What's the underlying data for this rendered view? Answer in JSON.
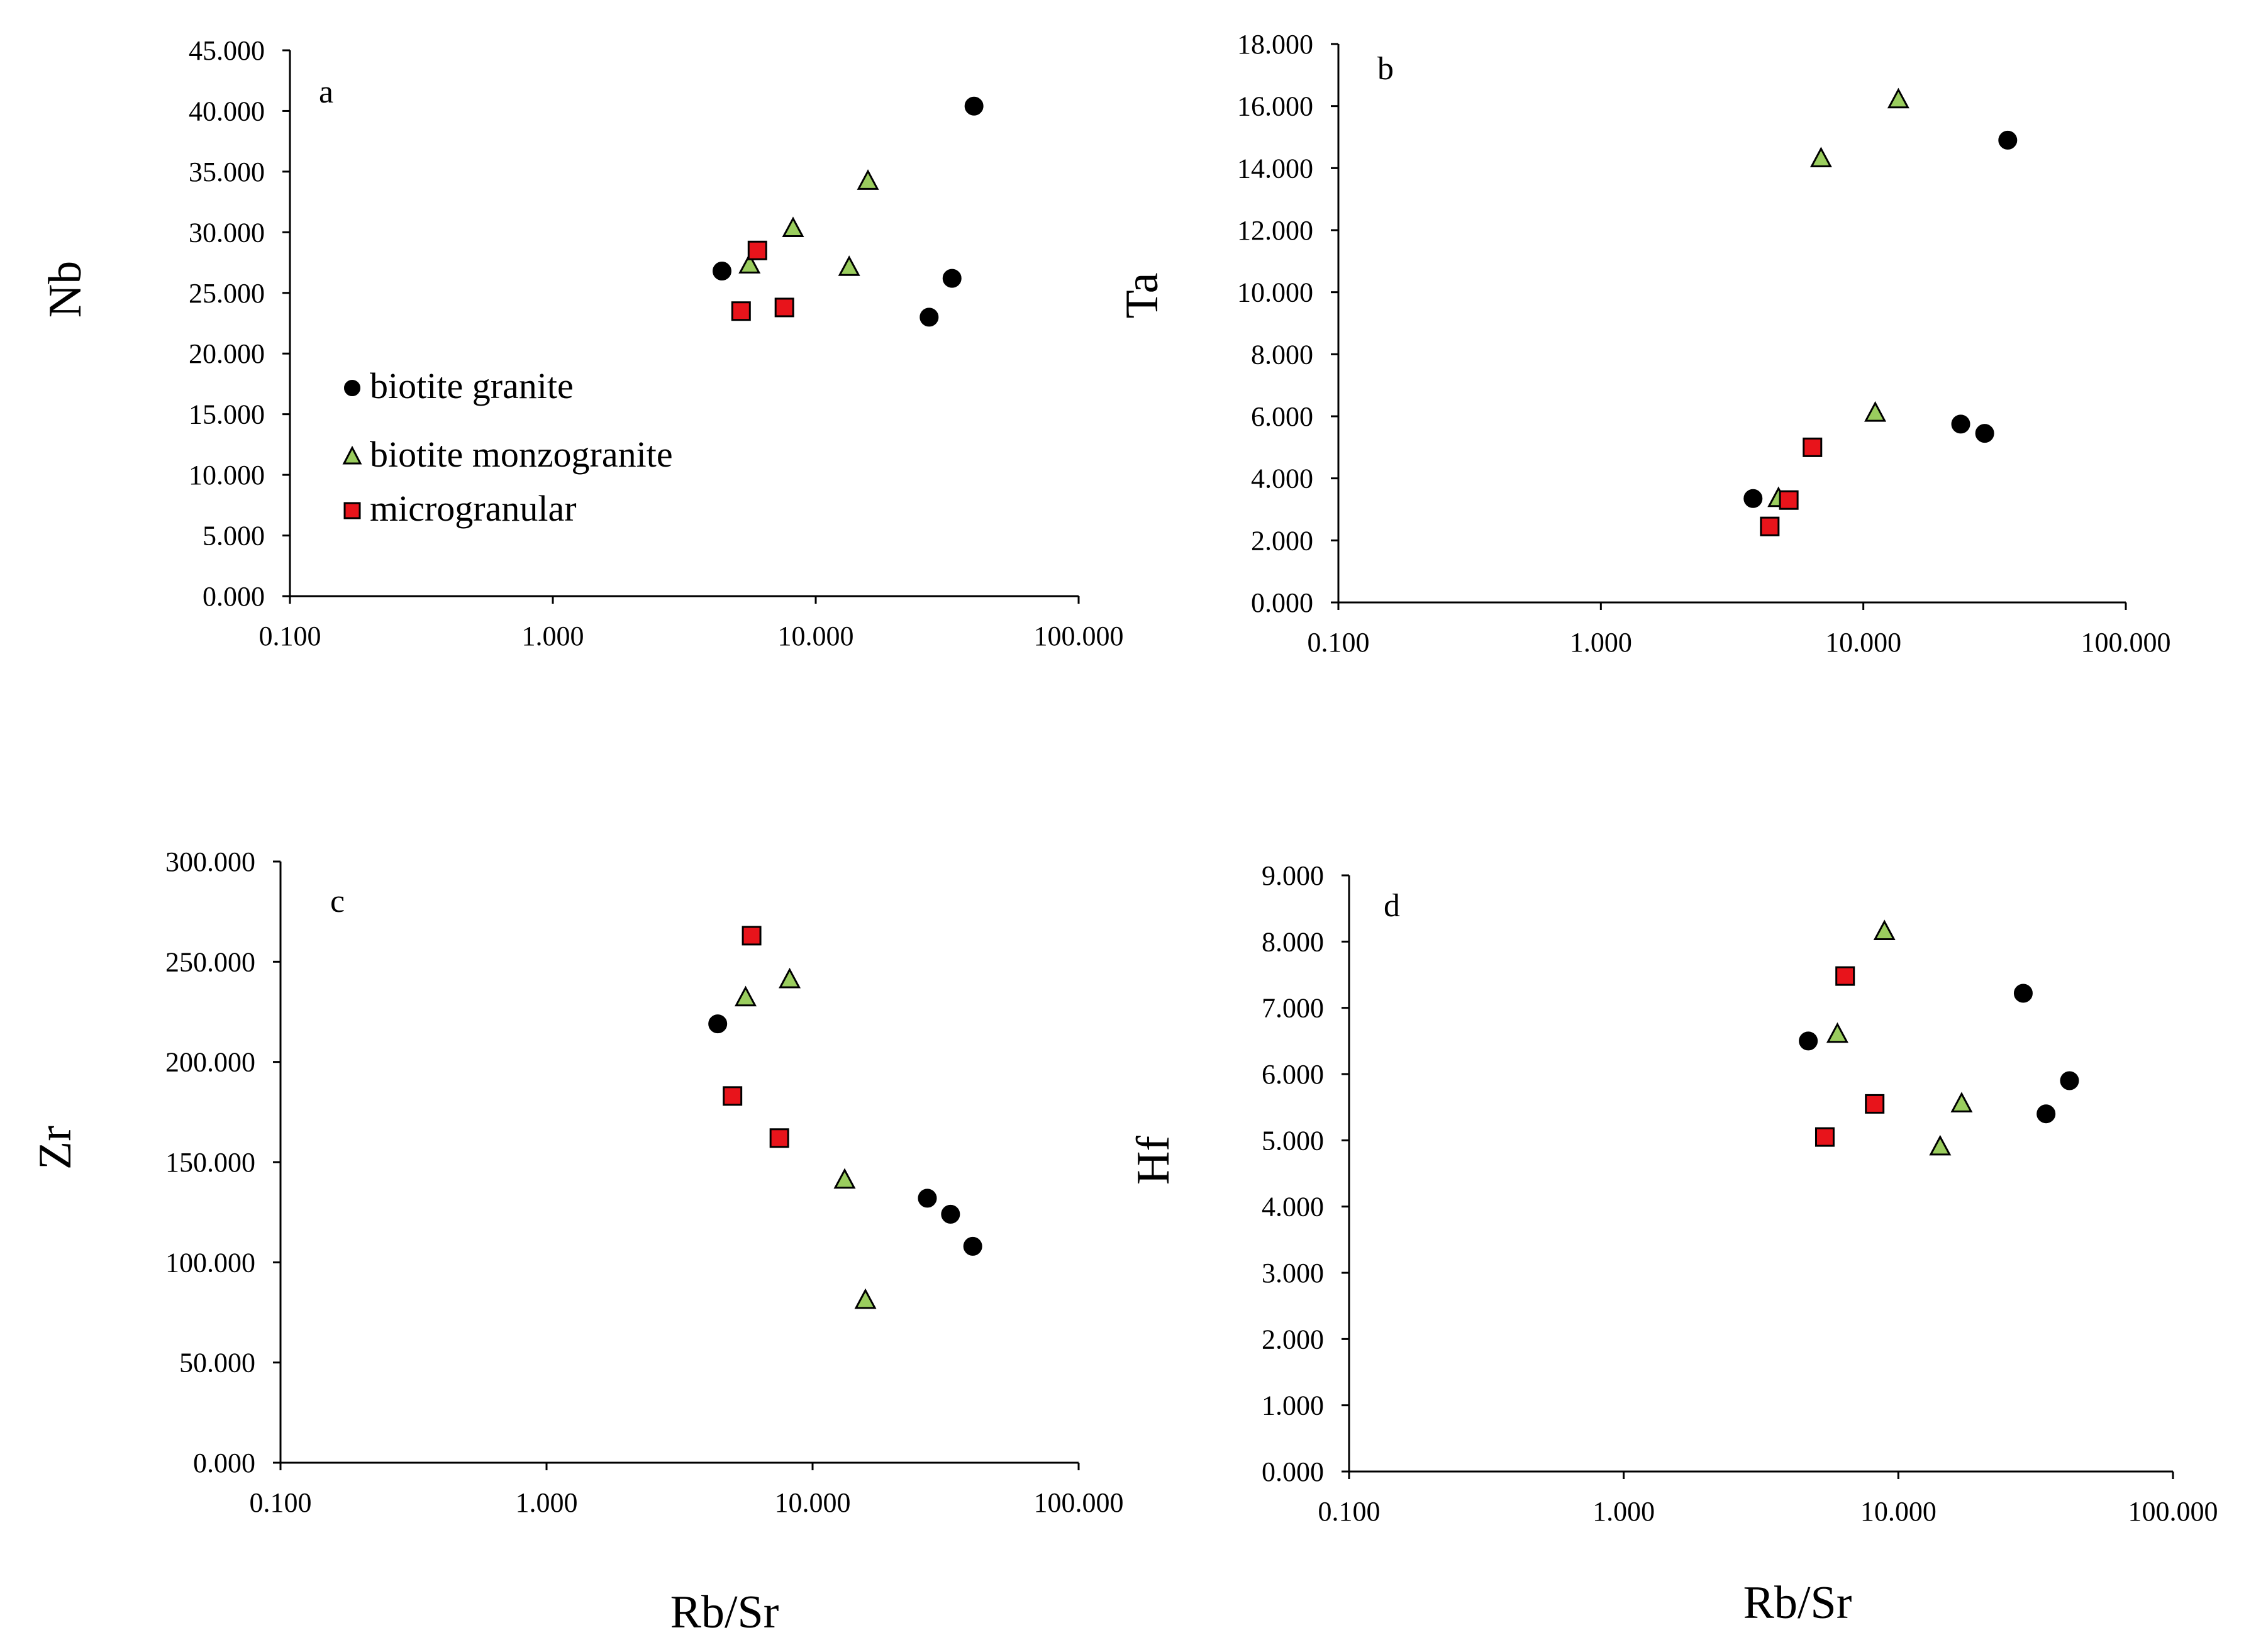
{
  "chart_data": [
    {
      "type": "scatter",
      "panel": "a",
      "xscale": "log",
      "xlim": [
        0.1,
        100
      ],
      "ylim": [
        0,
        45
      ],
      "xticks": [
        "0.100",
        "1.000",
        "10.000",
        "100.000"
      ],
      "yticks": [
        "0.000",
        "5.000",
        "10.000",
        "15.000",
        "20.000",
        "25.000",
        "30.000",
        "35.000",
        "40.000",
        "45.000"
      ],
      "xlabel": "",
      "ylabel": "Nb",
      "legend": {
        "placement": "left",
        "entries": [
          "biotite granite",
          "biotite monzogranite",
          "microgranular"
        ]
      },
      "series": [
        {
          "name": "biotite granite",
          "marker": "circle",
          "color": "#000000",
          "points": [
            [
              4.4,
              26.8
            ],
            [
              27,
              23.0
            ],
            [
              33,
              26.2
            ],
            [
              40,
              40.4
            ]
          ]
        },
        {
          "name": "biotite monzogranite",
          "marker": "triangle",
          "color": "#9ACD5E",
          "points": [
            [
              5.6,
              27.3
            ],
            [
              8.2,
              30.3
            ],
            [
              13.4,
              27.1
            ],
            [
              15.8,
              34.2
            ]
          ]
        },
        {
          "name": "microgranular",
          "marker": "square",
          "color": "#E8141B",
          "points": [
            [
              5.2,
              23.5
            ],
            [
              6.0,
              28.5
            ],
            [
              7.6,
              23.8
            ]
          ]
        }
      ]
    },
    {
      "type": "scatter",
      "panel": "b",
      "xscale": "log",
      "xlim": [
        0.1,
        100
      ],
      "ylim": [
        0,
        18
      ],
      "xticks": [
        "0.100",
        "1.000",
        "10.000",
        "100.000"
      ],
      "yticks": [
        "0.000",
        "2.000",
        "4.000",
        "6.000",
        "8.000",
        "10.000",
        "12.000",
        "14.000",
        "16.000",
        "18.000"
      ],
      "xlabel": "",
      "ylabel": "Ta",
      "series": [
        {
          "name": "biotite granite",
          "marker": "circle",
          "color": "#000000",
          "points": [
            [
              3.8,
              3.35
            ],
            [
              23.5,
              5.75
            ],
            [
              29,
              5.45
            ],
            [
              35.5,
              14.9
            ]
          ]
        },
        {
          "name": "biotite monzogranite",
          "marker": "triangle",
          "color": "#9ACD5E",
          "points": [
            [
              4.75,
              3.35
            ],
            [
              6.9,
              14.3
            ],
            [
              11.1,
              6.1
            ],
            [
              13.6,
              16.2
            ]
          ]
        },
        {
          "name": "microgranular",
          "marker": "square",
          "color": "#E8141B",
          "points": [
            [
              4.4,
              2.45
            ],
            [
              5.2,
              3.3
            ],
            [
              6.4,
              5.0
            ]
          ]
        }
      ]
    },
    {
      "type": "scatter",
      "panel": "c",
      "xscale": "log",
      "xlim": [
        0.1,
        100
      ],
      "ylim": [
        0,
        300
      ],
      "xticks": [
        "0.100",
        "1.000",
        "10.000",
        "100.000"
      ],
      "yticks": [
        "0.000",
        "50.000",
        "100.000",
        "150.000",
        "200.000",
        "250.000",
        "300.000"
      ],
      "xlabel": "Rb/Sr",
      "ylabel": "Zr",
      "series": [
        {
          "name": "biotite granite",
          "marker": "circle",
          "color": "#000000",
          "points": [
            [
              4.4,
              219
            ],
            [
              27,
              132
            ],
            [
              33,
              124
            ],
            [
              40,
              108
            ]
          ]
        },
        {
          "name": "biotite monzogranite",
          "marker": "triangle",
          "color": "#9ACD5E",
          "points": [
            [
              5.6,
              232
            ],
            [
              8.2,
              241
            ],
            [
              13.2,
              141
            ],
            [
              15.8,
              81
            ]
          ]
        },
        {
          "name": "microgranular",
          "marker": "square",
          "color": "#E8141B",
          "points": [
            [
              5.0,
              183
            ],
            [
              5.9,
              263
            ],
            [
              7.5,
              162
            ]
          ]
        }
      ]
    },
    {
      "type": "scatter",
      "panel": "d",
      "xscale": "log",
      "xlim": [
        0.1,
        100
      ],
      "ylim": [
        0,
        9
      ],
      "xticks": [
        "0.100",
        "1.000",
        "10.000",
        "100.000"
      ],
      "yticks": [
        "0.000",
        "1.000",
        "2.000",
        "3.000",
        "4.000",
        "5.000",
        "6.000",
        "7.000",
        "8.000",
        "9.000"
      ],
      "xlabel": "Rb/Sr",
      "ylabel": "Hf",
      "series": [
        {
          "name": "biotite granite",
          "marker": "circle",
          "color": "#000000",
          "points": [
            [
              4.7,
              6.5
            ],
            [
              28.5,
              7.22
            ],
            [
              34.5,
              5.4
            ],
            [
              42,
              5.9
            ]
          ]
        },
        {
          "name": "biotite monzogranite",
          "marker": "triangle",
          "color": "#9ACD5E",
          "points": [
            [
              6.0,
              6.6
            ],
            [
              8.9,
              8.15
            ],
            [
              14.2,
              4.9
            ],
            [
              17.0,
              5.55
            ]
          ]
        },
        {
          "name": "microgranular",
          "marker": "square",
          "color": "#E8141B",
          "points": [
            [
              5.4,
              5.05
            ],
            [
              6.4,
              7.48
            ],
            [
              8.2,
              5.55
            ]
          ]
        }
      ]
    }
  ]
}
